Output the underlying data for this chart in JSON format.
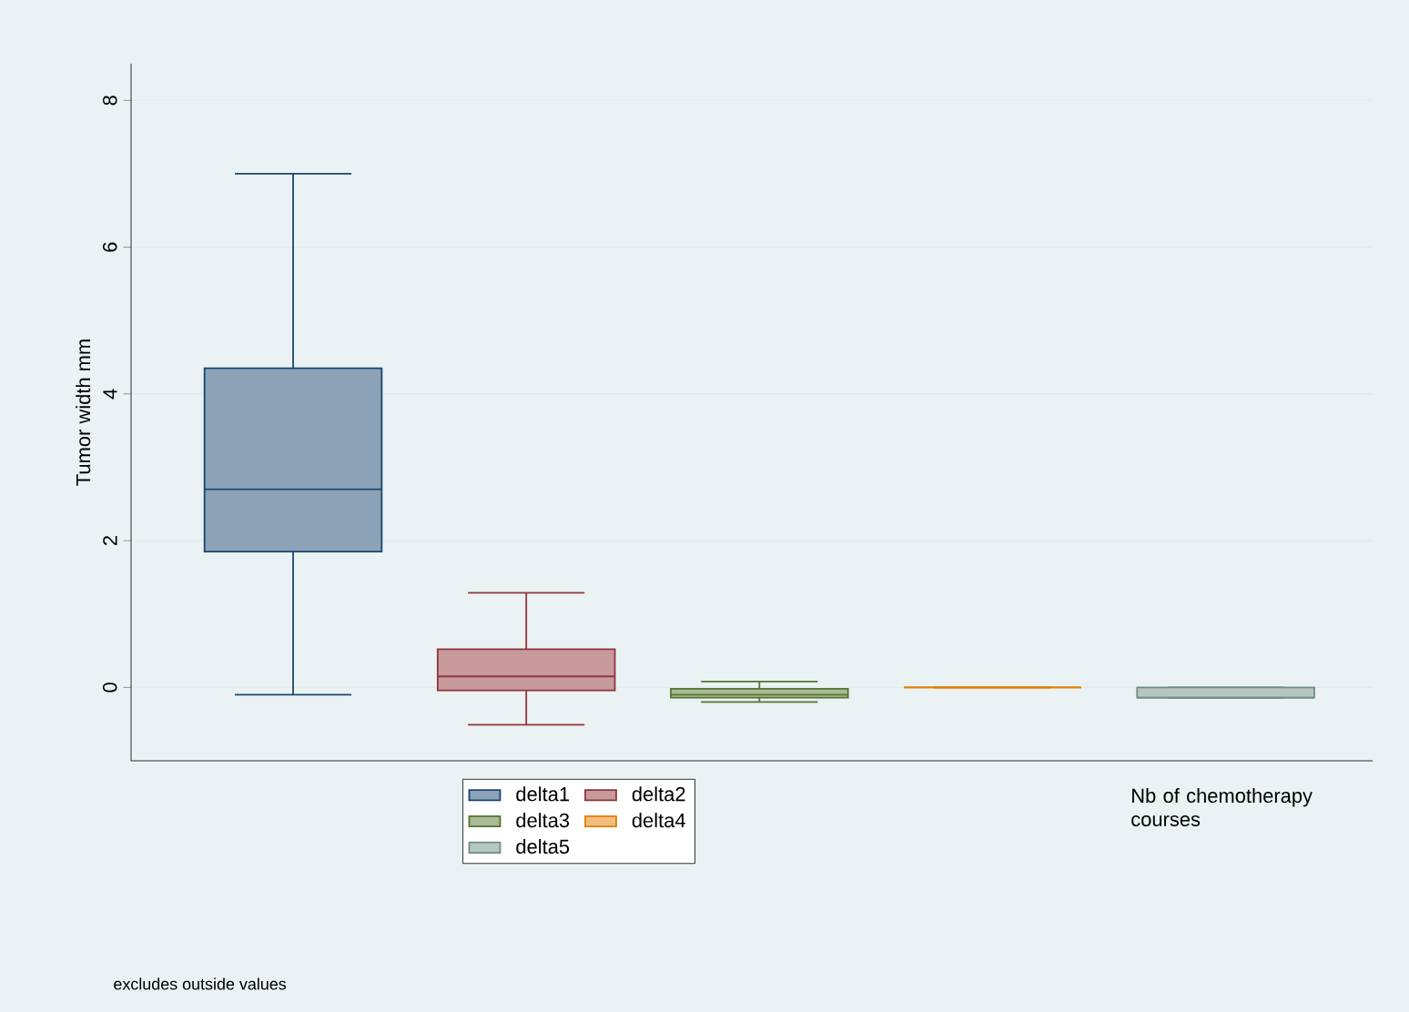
{
  "chart_data": {
    "type": "box",
    "xlabel": "Nb of chemotherapy courses",
    "ylabel": "Tumor width mm",
    "categories": [
      null
    ],
    "ylim": [
      -1,
      8.5
    ],
    "yticks": [
      0,
      2,
      4,
      6,
      8
    ],
    "grid": "y",
    "legend": "bottom",
    "annotations": [
      "excludes outside values"
    ],
    "series": [
      {
        "name": "delta1",
        "color": "#1a476f",
        "boxes": [
          {
            "low": -0.1,
            "q1": 1.85,
            "median": 2.7,
            "q3": 4.35,
            "high": 7.0
          }
        ]
      },
      {
        "name": "delta2",
        "color": "#90353b",
        "boxes": [
          {
            "low": -0.51,
            "q1": -0.04,
            "median": 0.15,
            "q3": 0.52,
            "high": 1.29
          }
        ]
      },
      {
        "name": "delta3",
        "color": "#55752f",
        "boxes": [
          {
            "low": -0.2,
            "q1": -0.14,
            "median": -0.1,
            "q3": -0.02,
            "high": 0.08
          }
        ]
      },
      {
        "name": "delta4",
        "color": "#e37e00",
        "boxes": [
          {
            "low": 0,
            "q1": 0,
            "median": 0,
            "q3": 0,
            "high": 0
          }
        ]
      },
      {
        "name": "delta5",
        "color": "#6e8e84",
        "boxes": [
          {
            "low": -0.14,
            "q1": -0.14,
            "median": -0.14,
            "q3": 0,
            "high": 0
          }
        ]
      }
    ]
  }
}
